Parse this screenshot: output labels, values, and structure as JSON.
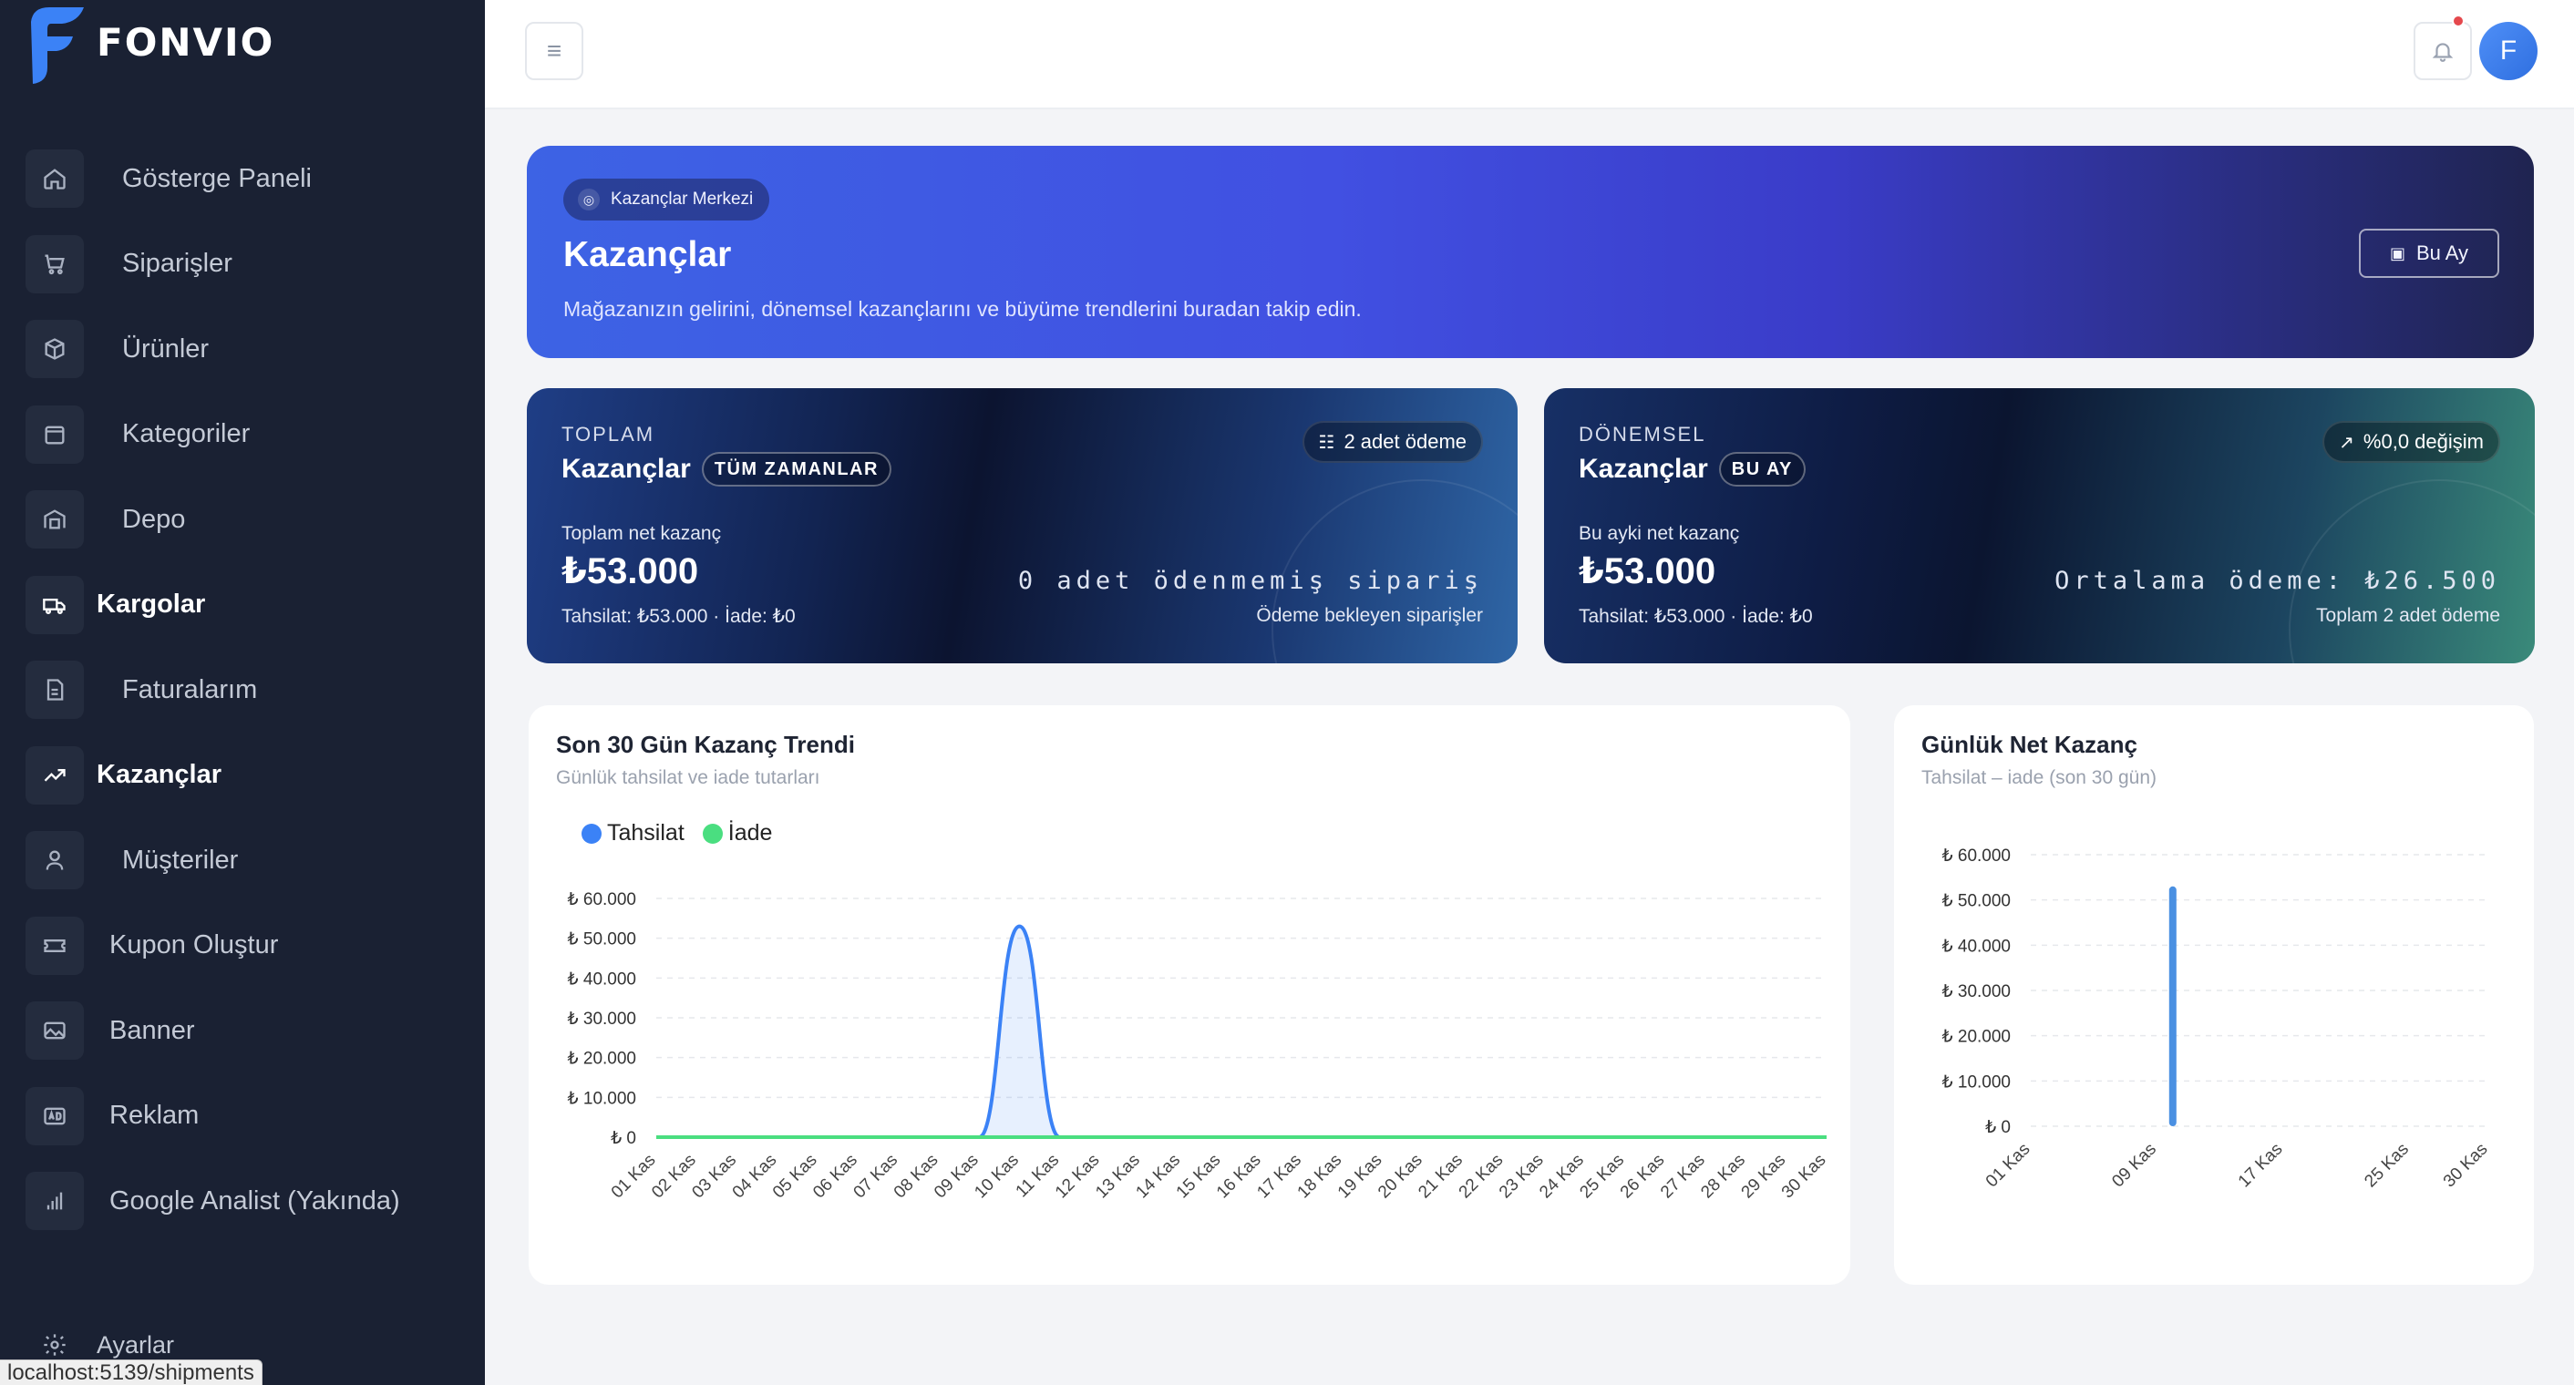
{
  "brand": {
    "name": "FONVIO",
    "accent": "#3b82f6"
  },
  "sidebar": {
    "items": [
      {
        "label": "Gösterge Paneli",
        "icon": "home-icon"
      },
      {
        "label": "Siparişler",
        "icon": "cart-icon"
      },
      {
        "label": "Ürünler",
        "icon": "box-icon"
      },
      {
        "label": "Kategoriler",
        "icon": "folder-icon"
      },
      {
        "label": "Depo",
        "icon": "warehouse-icon"
      },
      {
        "label": "Kargolar",
        "icon": "truck-icon"
      },
      {
        "label": "Faturalarım",
        "icon": "invoice-icon"
      },
      {
        "label": "Kazançlar",
        "icon": "trending-up-icon"
      },
      {
        "label": "Müşteriler",
        "icon": "user-icon"
      },
      {
        "label": "Kupon Oluştur",
        "icon": "ticket-icon"
      },
      {
        "label": "Banner",
        "icon": "image-icon"
      },
      {
        "label": "Reklam",
        "icon": "ad-icon"
      },
      {
        "label": "Google Analist (Yakında)",
        "icon": "bar-chart-icon"
      }
    ],
    "settings_label": "Ayarlar",
    "status_url": "localhost:5139/shipments"
  },
  "topbar": {
    "avatar_initial": "F"
  },
  "hero": {
    "badge": "Kazançlar Merkezi",
    "title": "Kazançlar",
    "description": "Mağazanızın gelirini, dönemsel kazançlarını ve büyüme trendlerini buradan takip edin.",
    "button_label": "Bu Ay"
  },
  "cards": {
    "total": {
      "overline": "TOPLAM",
      "title": "Kazançlar",
      "pill": "TÜM ZAMANLAR",
      "chip": "2 adet ödeme",
      "sub": "Toplam net kazanç",
      "amount": "₺53.000",
      "note": "Tahsilat: ₺53.000 · İade: ₺0",
      "mono": "0 adet ödenmemiş sipariş",
      "right_note": "Ödeme bekleyen siparişler"
    },
    "period": {
      "overline": "DÖNEMSEL",
      "title": "Kazançlar",
      "pill": "BU AY",
      "chip": "%0,0 değişim",
      "sub": "Bu ayki net kazanç",
      "amount": "₺53.000",
      "note": "Tahsilat: ₺53.000 · İade: ₺0",
      "mono": "Ortalama ödeme: ₺26.500",
      "right_note": "Toplam 2 adet ödeme"
    }
  },
  "trend_panel": {
    "title": "Son 30 Gün Kazanç Trendi",
    "subtitle": "Günlük tahsilat ve iade tutarları"
  },
  "daily_panel": {
    "title": "Günlük Net Kazanç",
    "subtitle": "Tahsilat – iade (son 30 gün)"
  },
  "chart_data": [
    {
      "type": "area",
      "title": "Son 30 Gün Kazanç Trendi",
      "categories": [
        "01 Kas",
        "02 Kas",
        "03 Kas",
        "04 Kas",
        "05 Kas",
        "06 Kas",
        "07 Kas",
        "08 Kas",
        "09 Kas",
        "10 Kas",
        "11 Kas",
        "12 Kas",
        "13 Kas",
        "14 Kas",
        "15 Kas",
        "16 Kas",
        "17 Kas",
        "18 Kas",
        "19 Kas",
        "20 Kas",
        "21 Kas",
        "22 Kas",
        "23 Kas",
        "24 Kas",
        "25 Kas",
        "26 Kas",
        "27 Kas",
        "28 Kas",
        "29 Kas",
        "30 Kas"
      ],
      "series": [
        {
          "name": "Tahsilat",
          "color": "#3b82f6",
          "values": [
            0,
            0,
            0,
            0,
            0,
            0,
            0,
            0,
            0,
            53000,
            0,
            0,
            0,
            0,
            0,
            0,
            0,
            0,
            0,
            0,
            0,
            0,
            0,
            0,
            0,
            0,
            0,
            0,
            0,
            0
          ]
        },
        {
          "name": "İade",
          "color": "#4ade80",
          "values": [
            0,
            0,
            0,
            0,
            0,
            0,
            0,
            0,
            0,
            0,
            0,
            0,
            0,
            0,
            0,
            0,
            0,
            0,
            0,
            0,
            0,
            0,
            0,
            0,
            0,
            0,
            0,
            0,
            0,
            0
          ]
        }
      ],
      "y_ticks": [
        "₺ 0",
        "₺ 10.000",
        "₺ 20.000",
        "₺ 30.000",
        "₺ 40.000",
        "₺ 50.000",
        "₺ 60.000"
      ],
      "ylim": [
        0,
        60000
      ],
      "legend": "top-left",
      "grid": true
    },
    {
      "type": "bar",
      "title": "Günlük Net Kazanç",
      "categories": [
        "01 Kas",
        "02 Kas",
        "03 Kas",
        "04 Kas",
        "05 Kas",
        "06 Kas",
        "07 Kas",
        "08 Kas",
        "09 Kas",
        "10 Kas",
        "11 Kas",
        "12 Kas",
        "13 Kas",
        "14 Kas",
        "15 Kas",
        "16 Kas",
        "17 Kas",
        "18 Kas",
        "19 Kas",
        "20 Kas",
        "21 Kas",
        "22 Kas",
        "23 Kas",
        "24 Kas",
        "25 Kas",
        "26 Kas",
        "27 Kas",
        "28 Kas",
        "29 Kas",
        "30 Kas"
      ],
      "x_tick_labels": [
        "01 Kas",
        "09 Kas",
        "17 Kas",
        "25 Kas",
        "30 Kas"
      ],
      "values": [
        0,
        0,
        0,
        0,
        0,
        0,
        0,
        0,
        0,
        53000,
        0,
        0,
        0,
        0,
        0,
        0,
        0,
        0,
        0,
        0,
        0,
        0,
        0,
        0,
        0,
        0,
        0,
        0,
        0,
        0
      ],
      "color": "#4a90e2",
      "y_ticks": [
        "₺ 0",
        "₺ 10.000",
        "₺ 20.000",
        "₺ 30.000",
        "₺ 40.000",
        "₺ 50.000",
        "₺ 60.000"
      ],
      "ylim": [
        0,
        60000
      ],
      "grid": true
    }
  ]
}
